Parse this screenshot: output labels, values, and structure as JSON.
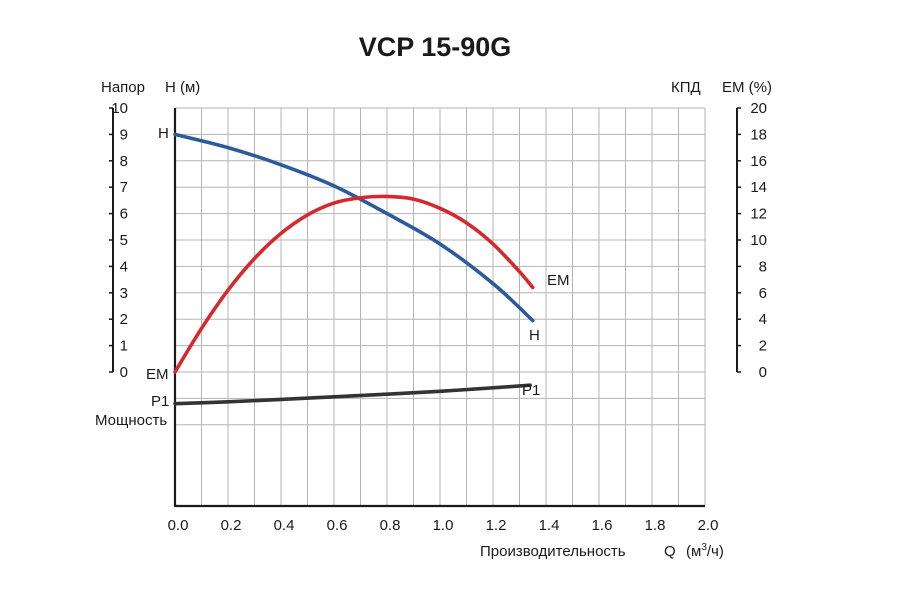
{
  "chart_data": {
    "type": "line",
    "title": "VCP 15-90G",
    "left_axis": {
      "label_1": "Напор",
      "label_2": "H (м)",
      "range": [
        0,
        10
      ],
      "ticks": [
        "0",
        "1",
        "2",
        "3",
        "4",
        "5",
        "6",
        "7",
        "8",
        "9",
        "10"
      ]
    },
    "right_axis": {
      "label_1": "КПД",
      "label_2": "EM (%)",
      "range": [
        0,
        20
      ],
      "ticks": [
        "0",
        "2",
        "4",
        "6",
        "8",
        "10",
        "12",
        "14",
        "16",
        "18",
        "20"
      ]
    },
    "x_axis": {
      "label": "Производительность",
      "symbol": "Q",
      "unit_pre": "(м",
      "unit_sup": "3",
      "unit_post": "/ч)",
      "range": [
        0,
        2.0
      ],
      "ticks": [
        "0.0",
        "0.2",
        "0.4",
        "0.6",
        "0.8",
        "1.0",
        "1.2",
        "1.4",
        "1.6",
        "1.8",
        "2.0"
      ]
    },
    "power_label": "Мощность",
    "series": [
      {
        "name": "H",
        "label_start": "H",
        "label_end": "H",
        "axis": "left",
        "color": "#2d5a9b",
        "x": [
          0,
          0.2,
          0.4,
          0.6,
          0.8,
          1.0,
          1.2,
          1.35
        ],
        "y": [
          9.0,
          8.5,
          7.85,
          7.05,
          6.0,
          4.85,
          3.35,
          1.95
        ]
      },
      {
        "name": "EM",
        "label_start": "EM",
        "label_end": "EM",
        "axis": "right",
        "color": "#d42a2f",
        "x": [
          0,
          0.1,
          0.2,
          0.3,
          0.4,
          0.5,
          0.6,
          0.7,
          0.8,
          0.9,
          1.0,
          1.1,
          1.2,
          1.3,
          1.35
        ],
        "y": [
          0,
          3.3,
          6.2,
          8.6,
          10.5,
          11.9,
          12.8,
          13.2,
          13.3,
          13.1,
          12.4,
          11.3,
          9.7,
          7.6,
          6.4
        ]
      },
      {
        "name": "P1",
        "label_start": "P1",
        "label_end": "P1",
        "axis": "power",
        "color": "#333333",
        "x": [
          0,
          0.2,
          0.4,
          0.6,
          0.8,
          1.0,
          1.2,
          1.34
        ],
        "y": [
          -1.2,
          -1.13,
          -1.04,
          -0.94,
          -0.84,
          -0.73,
          -0.6,
          -0.5
        ]
      }
    ]
  }
}
